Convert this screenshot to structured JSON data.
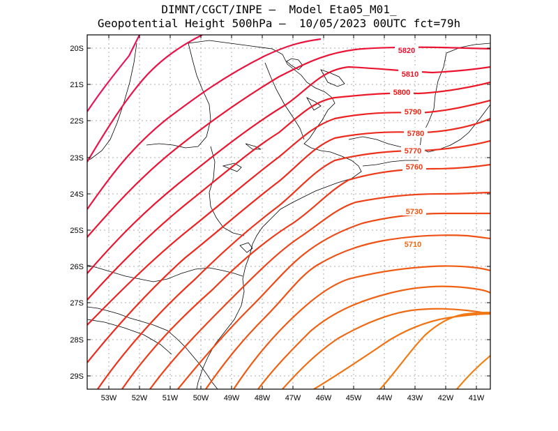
{
  "header": {
    "title_line1": "DIMNT/CGCT/INPE –  Model Eta05_M01_",
    "title_line2": "Geopotential Height 500hPa –  10/05/2023 00UTC fct=79h"
  },
  "map": {
    "lat_labels": [
      "20S",
      "21S",
      "22S",
      "23S",
      "24S",
      "25S",
      "26S",
      "27S",
      "28S",
      "29S"
    ],
    "lon_labels": [
      "53W",
      "52W",
      "51W",
      "50W",
      "49W",
      "48W",
      "47W",
      "46W",
      "45W",
      "44W",
      "43W",
      "42W",
      "41W"
    ],
    "contour_labels": [
      {
        "text": "5820",
        "color": "#ee1133"
      },
      {
        "text": "5810",
        "color": "#ee1122"
      },
      {
        "text": "5800",
        "color": "#ee1111"
      },
      {
        "text": "5790",
        "color": "#ee2211"
      },
      {
        "text": "5780",
        "color": "#ee2a11"
      },
      {
        "text": "5770",
        "color": "#ee3311"
      },
      {
        "text": "5760",
        "color": "#ee3a10"
      },
      {
        "text": "5730",
        "color": "#ee5510"
      },
      {
        "text": "5710",
        "color": "#ee6610"
      }
    ],
    "colors": {
      "frame": "#000000",
      "grid": "#aaaaaa",
      "coast": "#000000"
    }
  }
}
